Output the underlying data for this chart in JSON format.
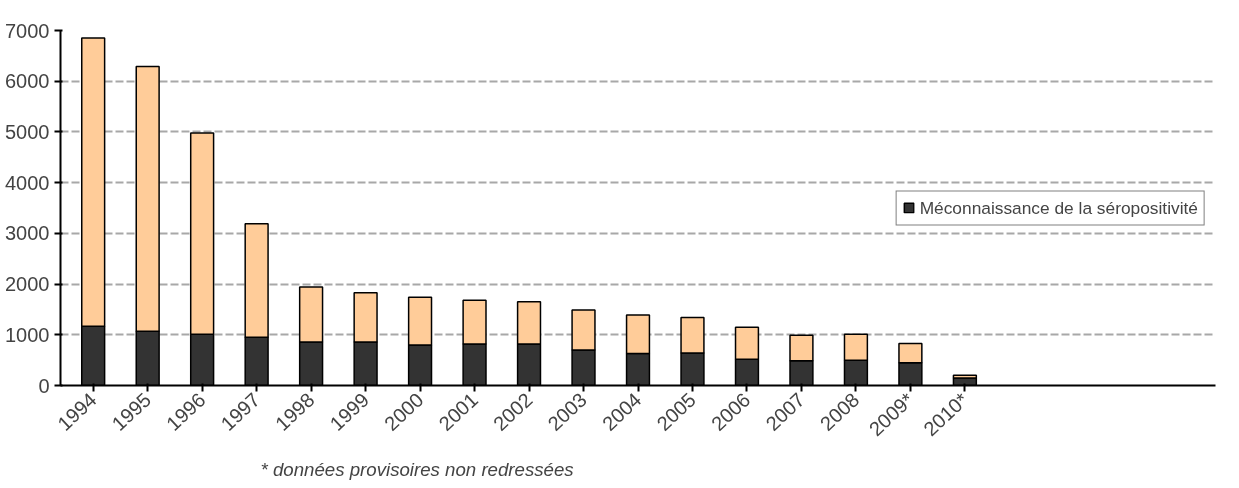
{
  "chart_data": {
    "type": "bar",
    "stacked": true,
    "categories": [
      "1994",
      "1995",
      "1996",
      "1997",
      "1998",
      "1999",
      "2000",
      "2001",
      "2002",
      "2003",
      "2004",
      "2005",
      "2006",
      "2007",
      "2008",
      "2009*",
      "2010*"
    ],
    "series": [
      {
        "name": "Méconnaissance de la séropositivité",
        "color": "#333333",
        "values": [
          1170,
          1070,
          1010,
          950,
          860,
          860,
          800,
          820,
          820,
          700,
          630,
          640,
          520,
          490,
          500,
          450,
          150
        ]
      },
      {
        "color": "#ffcc99",
        "values": [
          5680,
          5220,
          3970,
          2240,
          1080,
          970,
          940,
          860,
          830,
          790,
          760,
          700,
          630,
          500,
          510,
          380,
          50
        ]
      }
    ],
    "ylim": [
      0,
      7000
    ],
    "yticks": [
      0,
      1000,
      2000,
      3000,
      4000,
      5000,
      6000,
      7000
    ],
    "grid": "y",
    "legend": "right",
    "annotations": [
      "* données provisoires non redressées"
    ]
  }
}
